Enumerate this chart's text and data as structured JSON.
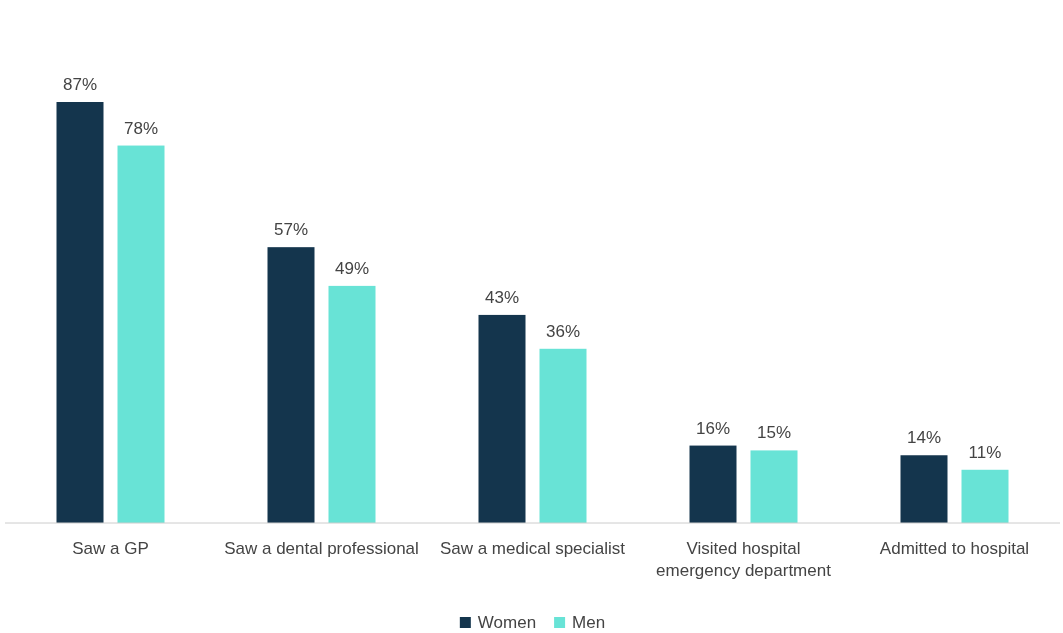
{
  "chart_data": {
    "type": "bar",
    "categories": [
      "Saw a GP",
      "Saw a dental professional",
      "Saw a medical specialist",
      "Visited hospital emergency department",
      "Admitted to hospital"
    ],
    "series": [
      {
        "name": "Women",
        "color": "#14354d",
        "values": [
          87,
          57,
          43,
          16,
          14
        ],
        "value_labels": [
          "87%",
          "57%",
          "43%",
          "16%",
          "14%"
        ]
      },
      {
        "name": "Men",
        "color": "#68e3d6",
        "values": [
          78,
          49,
          36,
          15,
          11
        ],
        "value_labels": [
          "78%",
          "49%",
          "36%",
          "15%",
          "11%"
        ]
      }
    ],
    "legend": "bottom"
  }
}
